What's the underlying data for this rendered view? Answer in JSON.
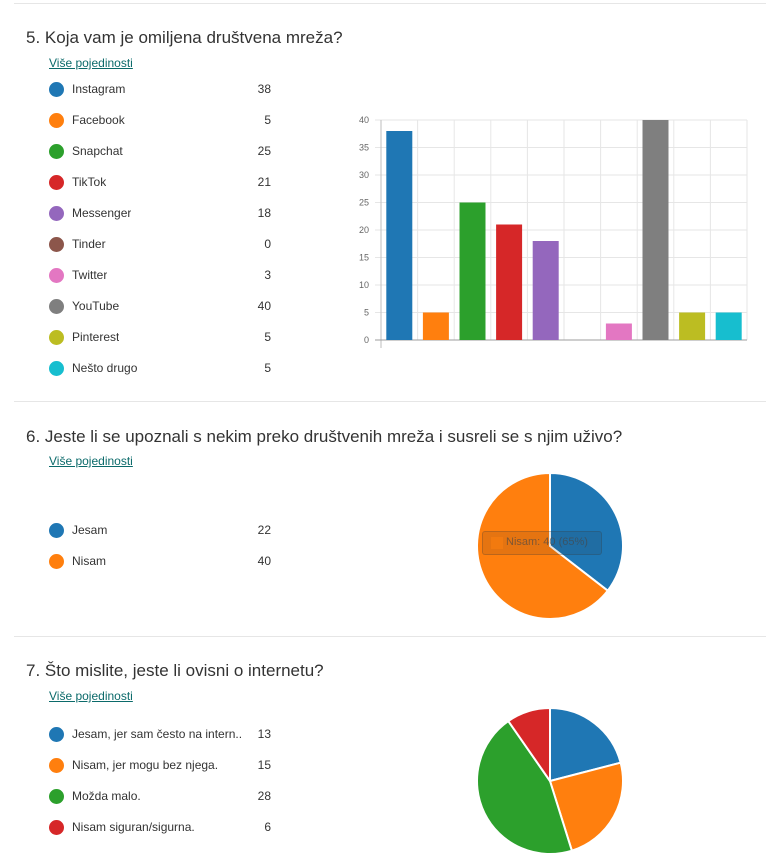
{
  "more_details_label": "Više pojedinosti",
  "questions": [
    {
      "title": "5.  Koja vam je omiljena društvena mreža?",
      "legend": [
        {
          "label": "Instagram",
          "count": "38"
        },
        {
          "label": "Facebook",
          "count": "5"
        },
        {
          "label": "Snapchat",
          "count": "25"
        },
        {
          "label": "TikTok",
          "count": "21"
        },
        {
          "label": "Messenger",
          "count": "18"
        },
        {
          "label": "Tinder",
          "count": "0"
        },
        {
          "label": "Twitter",
          "count": "3"
        },
        {
          "label": "YouTube",
          "count": "40"
        },
        {
          "label": "Pinterest",
          "count": "5"
        },
        {
          "label": "Nešto drugo",
          "count": "5"
        }
      ]
    },
    {
      "title": "6.  Jeste li se upoznali s nekim preko društvenih mreža i susreli se s njim uživo?",
      "legend": [
        {
          "label": "Jesam",
          "count": "22"
        },
        {
          "label": "Nisam",
          "count": "40"
        }
      ],
      "tooltip": "Nisam: 40 (65%)"
    },
    {
      "title": "7.  Što mislite, jeste li ovisni o internetu?",
      "legend": [
        {
          "label": "Jesam, jer sam često na intern...",
          "count": "13"
        },
        {
          "label": "Nisam, jer mogu bez njega.",
          "count": "15"
        },
        {
          "label": "Možda malo.",
          "count": "28"
        },
        {
          "label": "Nisam siguran/sigurna.",
          "count": "6"
        }
      ]
    }
  ],
  "colors": [
    "#1f77b4",
    "#ff7f0e",
    "#2ca02c",
    "#d62728",
    "#9467bd",
    "#8c564b",
    "#e377c2",
    "#7f7f7f",
    "#bcbd22",
    "#17becf"
  ],
  "chart_data": [
    {
      "type": "bar",
      "categories": [
        "Instagram",
        "Facebook",
        "Snapchat",
        "TikTok",
        "Messenger",
        "Tinder",
        "Twitter",
        "YouTube",
        "Pinterest",
        "Nešto drugo"
      ],
      "values": [
        38,
        5,
        25,
        21,
        18,
        0,
        3,
        40,
        5,
        5
      ],
      "ylim": [
        0,
        40
      ],
      "yticks": [
        0,
        5,
        10,
        15,
        20,
        25,
        30,
        35,
        40
      ],
      "grid": true
    },
    {
      "type": "pie",
      "categories": [
        "Jesam",
        "Nisam"
      ],
      "values": [
        22,
        40
      ]
    },
    {
      "type": "pie",
      "categories": [
        "Jesam, jer sam često na intern...",
        "Nisam, jer mogu bez njega.",
        "Možda malo.",
        "Nisam siguran/sigurna."
      ],
      "values": [
        13,
        15,
        28,
        6
      ]
    }
  ]
}
